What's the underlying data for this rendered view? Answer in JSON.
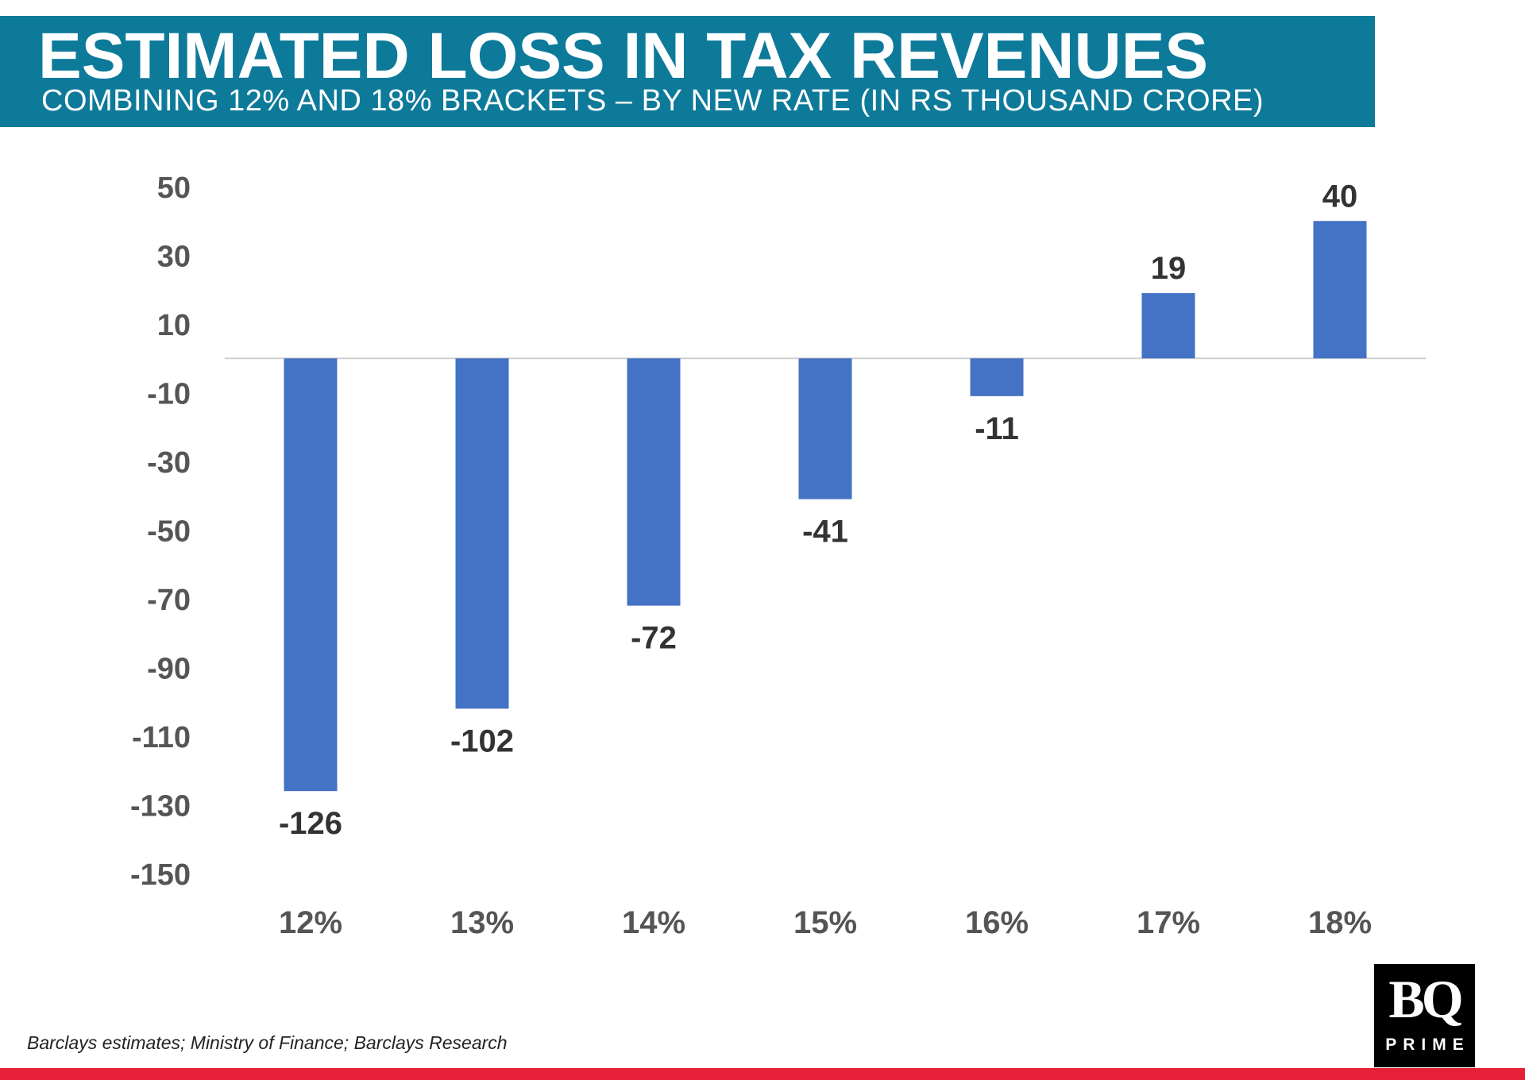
{
  "header": {
    "title": "ESTIMATED LOSS IN TAX REVENUES",
    "subtitle": "COMBINING 12% AND 18% BRACKETS – BY NEW RATE (IN RS THOUSAND CRORE)"
  },
  "chart_data": {
    "type": "bar",
    "title": "ESTIMATED LOSS IN TAX REVENUES",
    "subtitle": "COMBINING 12% AND 18% BRACKETS – BY NEW RATE (IN RS THOUSAND CRORE)",
    "categories": [
      "12%",
      "13%",
      "14%",
      "15%",
      "16%",
      "17%",
      "18%"
    ],
    "values": [
      -126,
      -102,
      -72,
      -41,
      -11,
      19,
      40
    ],
    "data_labels": [
      "-126",
      "-102",
      "-72",
      "-41",
      "-11",
      "19",
      "40"
    ],
    "yticks": [
      50,
      30,
      10,
      -10,
      -30,
      -50,
      -70,
      -90,
      -110,
      -130,
      -150
    ],
    "ylim": [
      -150,
      50
    ],
    "xlabel": "",
    "ylabel": "",
    "grid": false,
    "bar_color": "#4472c4",
    "label_color": "#333333",
    "tick_color": "#555555"
  },
  "source": "Barclays estimates; Ministry of Finance; Barclays Research",
  "logo": {
    "mark": "BQ",
    "text": "PRIME"
  },
  "colors": {
    "header_bg": "#0d7a9a",
    "accent_bar": "#e8213a"
  }
}
